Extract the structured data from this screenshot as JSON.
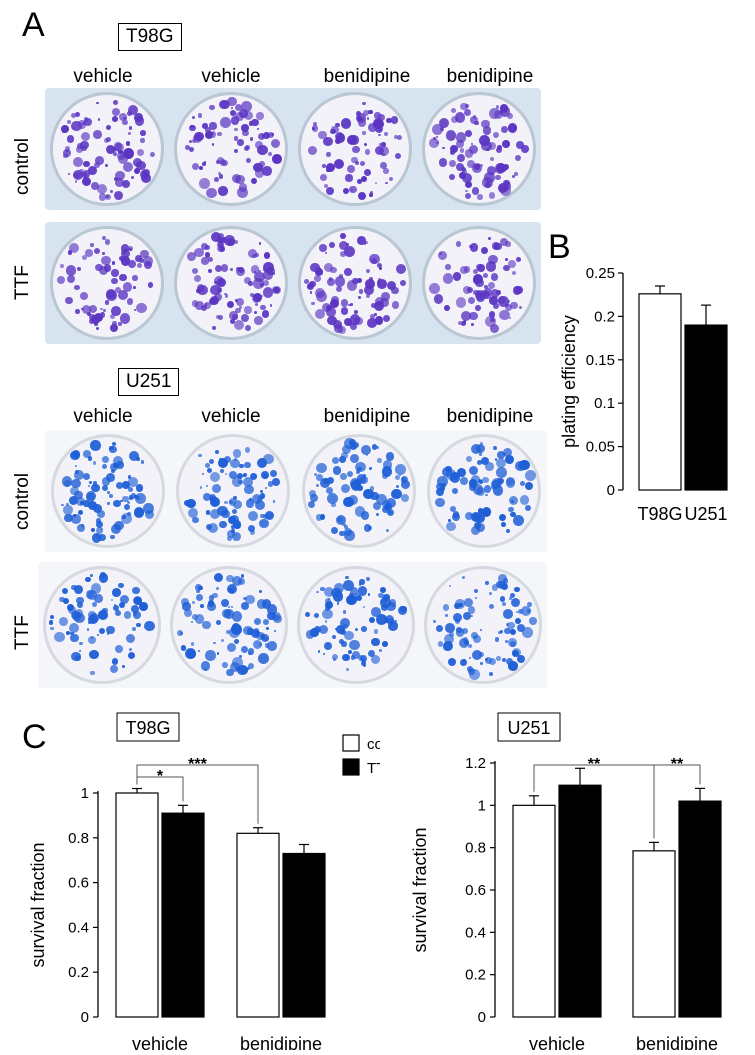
{
  "panels": {
    "a": "A",
    "b": "B",
    "c": "C"
  },
  "cell_lines": {
    "t98g": "T98G",
    "u251": "U251"
  },
  "columns": [
    "vehicle",
    "vehicle",
    "benidipine",
    "benidipine"
  ],
  "rows": {
    "control": "control",
    "ttf": "TTF"
  },
  "colors": {
    "t98g_stain": "#5b35c2",
    "u251_stain": "#1f5fd6",
    "t98g_plate": "#d7e3ee",
    "u251_plate": "#f4f6fa"
  },
  "chart_data": [
    {
      "type": "bar",
      "panel": "B",
      "categories": [
        "T98G",
        "U251"
      ],
      "values": [
        0.226,
        0.19
      ],
      "errors": [
        0.009,
        0.023
      ],
      "bar_colors": [
        "#ffffff",
        "#000000"
      ],
      "ylabel": "plating efficiency",
      "ylim": [
        0,
        0.25
      ],
      "yticks": [
        "0",
        "0.05",
        "0.1",
        "0.15",
        "0.2",
        "0.25"
      ]
    },
    {
      "type": "bar",
      "panel": "C",
      "title": "T98G",
      "categories": [
        "vehicle",
        "benidipine"
      ],
      "series": [
        {
          "name": "control",
          "values": [
            1.0,
            0.82
          ],
          "errors": [
            0.02,
            0.025
          ]
        },
        {
          "name": "TTF",
          "values": [
            0.91,
            0.73
          ],
          "errors": [
            0.035,
            0.04
          ]
        }
      ],
      "ylabel": "survival fraction",
      "ylim": [
        0,
        1
      ],
      "yticks": [
        "0",
        "0.2",
        "0.4",
        "0.6",
        "0.8",
        "1"
      ],
      "significance": [
        "*",
        "***"
      ],
      "legend": [
        "control",
        "TTF"
      ]
    },
    {
      "type": "bar",
      "panel": "C",
      "title": "U251",
      "categories": [
        "vehicle",
        "benidipine"
      ],
      "series": [
        {
          "name": "control",
          "values": [
            1.0,
            0.785
          ],
          "errors": [
            0.045,
            0.04
          ]
        },
        {
          "name": "TTF",
          "values": [
            1.095,
            1.02
          ],
          "errors": [
            0.08,
            0.06
          ]
        }
      ],
      "ylabel": "survival fraction",
      "ylim": [
        0,
        1.2
      ],
      "yticks": [
        "0",
        "0.2",
        "0.4",
        "0.6",
        "0.8",
        "1",
        "1.2"
      ],
      "significance": [
        "**",
        "**"
      ]
    }
  ]
}
